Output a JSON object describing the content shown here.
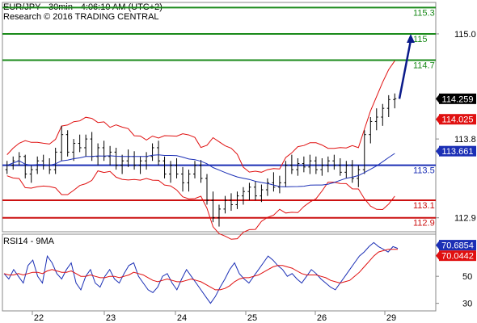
{
  "header": {
    "line1": "EUR/JPY - 30min - 4:06:10 AM (UTC+2)",
    "line2": "Research © 2016 TRADING CENTRAL"
  },
  "rsi_header": "RSI14 - 9MA",
  "colors": {
    "green": "#1a8a1a",
    "blue": "#1b2fb5",
    "red": "#cc1111",
    "price": "#000000",
    "ma_red": "#e01010",
    "ma_blue": "#1b2fb5",
    "arrow": "#0a1a8a"
  },
  "chart_data": {
    "type": "candlestick",
    "x_tick_labels": [
      "22",
      "23",
      "24",
      "25",
      "26",
      "29"
    ],
    "price_axis": {
      "range": [
        112.75,
        115.35
      ],
      "tick_labels": [
        "115.0",
        "113.8",
        "112.9"
      ],
      "tick_values": [
        115.0,
        113.8,
        112.9
      ]
    },
    "levels": [
      {
        "label": "115.3",
        "value": 115.3,
        "color": "green"
      },
      {
        "label": "115",
        "value": 115.0,
        "color": "green"
      },
      {
        "label": "114.7",
        "value": 114.7,
        "color": "green"
      },
      {
        "label": "113.5",
        "value": 113.5,
        "color": "blue"
      },
      {
        "label": "113.1",
        "value": 113.1,
        "color": "red"
      },
      {
        "label": "112.9",
        "value": 112.9,
        "color": "red"
      }
    ],
    "price_tags": [
      {
        "label": "114.259",
        "value": 114.259,
        "bg": "#000000",
        "fg": "#ffffff"
      },
      {
        "label": "114.025",
        "value": 114.025,
        "bg": "#e01010",
        "fg": "#ffffff"
      },
      {
        "label": "113.661",
        "value": 113.661,
        "bg": "#1b2fb5",
        "fg": "#ffffff"
      }
    ],
    "forecast_arrow": {
      "from": 114.259,
      "to": 115.0
    },
    "price_series": [
      [
        113.45,
        113.55,
        113.4,
        113.5
      ],
      [
        113.5,
        113.6,
        113.45,
        113.55
      ],
      [
        113.55,
        113.65,
        113.5,
        113.6
      ],
      [
        113.6,
        113.62,
        113.35,
        113.4
      ],
      [
        113.4,
        113.5,
        113.3,
        113.45
      ],
      [
        113.45,
        113.6,
        113.4,
        113.55
      ],
      [
        113.55,
        113.62,
        113.45,
        113.5
      ],
      [
        113.5,
        113.58,
        113.4,
        113.45
      ],
      [
        113.45,
        113.7,
        113.4,
        113.65
      ],
      [
        113.65,
        113.95,
        113.55,
        113.85
      ],
      [
        113.85,
        113.9,
        113.6,
        113.65
      ],
      [
        113.65,
        113.8,
        113.55,
        113.75
      ],
      [
        113.75,
        113.85,
        113.65,
        113.7
      ],
      [
        113.7,
        113.85,
        113.6,
        113.8
      ],
      [
        113.8,
        113.88,
        113.55,
        113.6
      ],
      [
        113.6,
        113.75,
        113.5,
        113.7
      ],
      [
        113.7,
        113.78,
        113.55,
        113.6
      ],
      [
        113.6,
        113.72,
        113.5,
        113.65
      ],
      [
        113.65,
        113.7,
        113.45,
        113.5
      ],
      [
        113.5,
        113.62,
        113.4,
        113.55
      ],
      [
        113.55,
        113.68,
        113.48,
        113.6
      ],
      [
        113.6,
        113.66,
        113.45,
        113.5
      ],
      [
        113.5,
        113.6,
        113.4,
        113.55
      ],
      [
        113.55,
        113.65,
        113.45,
        113.6
      ],
      [
        113.6,
        113.75,
        113.55,
        113.7
      ],
      [
        113.7,
        113.78,
        113.5,
        113.55
      ],
      [
        113.55,
        113.6,
        113.35,
        113.4
      ],
      [
        113.4,
        113.55,
        113.3,
        113.5
      ],
      [
        113.5,
        113.58,
        113.35,
        113.4
      ],
      [
        113.4,
        113.48,
        113.2,
        113.3
      ],
      [
        113.3,
        113.45,
        113.2,
        113.4
      ],
      [
        113.4,
        113.55,
        113.35,
        113.5
      ],
      [
        113.5,
        113.56,
        113.3,
        113.35
      ],
      [
        113.35,
        113.4,
        113.05,
        113.1
      ],
      [
        113.1,
        113.2,
        112.85,
        112.9
      ],
      [
        112.9,
        113.05,
        112.8,
        113.0
      ],
      [
        113.0,
        113.15,
        112.95,
        113.1
      ],
      [
        113.1,
        113.18,
        112.98,
        113.05
      ],
      [
        113.05,
        113.2,
        113.0,
        113.15
      ],
      [
        113.15,
        113.25,
        113.05,
        113.2
      ],
      [
        113.2,
        113.3,
        113.1,
        113.25
      ],
      [
        113.25,
        113.32,
        113.1,
        113.15
      ],
      [
        113.15,
        113.28,
        113.08,
        113.22
      ],
      [
        113.22,
        113.35,
        113.15,
        113.3
      ],
      [
        113.3,
        113.42,
        113.2,
        113.25
      ],
      [
        113.25,
        113.38,
        113.18,
        113.3
      ],
      [
        113.3,
        113.55,
        113.25,
        113.5
      ],
      [
        113.5,
        113.62,
        113.4,
        113.45
      ],
      [
        113.45,
        113.58,
        113.38,
        113.52
      ],
      [
        113.52,
        113.6,
        113.42,
        113.48
      ],
      [
        113.48,
        113.62,
        113.4,
        113.55
      ],
      [
        113.55,
        113.6,
        113.4,
        113.45
      ],
      [
        113.45,
        113.58,
        113.38,
        113.5
      ],
      [
        113.5,
        113.6,
        113.42,
        113.55
      ],
      [
        113.55,
        113.62,
        113.45,
        113.5
      ],
      [
        113.5,
        113.58,
        113.38,
        113.42
      ],
      [
        113.42,
        113.55,
        113.35,
        113.5
      ],
      [
        113.5,
        113.56,
        113.3,
        113.35
      ],
      [
        113.35,
        113.5,
        113.25,
        113.45
      ],
      [
        113.45,
        113.9,
        113.4,
        113.85
      ],
      [
        113.85,
        114.05,
        113.75,
        114.0
      ],
      [
        114.0,
        114.15,
        113.9,
        114.05
      ],
      [
        114.05,
        114.2,
        113.95,
        114.15
      ],
      [
        114.15,
        114.3,
        114.05,
        114.25
      ],
      [
        114.25,
        114.32,
        114.15,
        114.26
      ]
    ],
    "rsi_axis": {
      "range": [
        25,
        80
      ],
      "tick_labels": [
        "50",
        "30"
      ],
      "tick_values": [
        50,
        30
      ]
    },
    "rsi_tags": [
      {
        "label": "70.6854",
        "value": 70.6854,
        "bg": "#1b2fb5",
        "fg": "#ffffff"
      },
      {
        "label": "70.0442",
        "value": 70.0442,
        "bg": "#e01010",
        "fg": "#ffffff"
      }
    ],
    "rsi_series": [
      52,
      48,
      55,
      50,
      45,
      58,
      62,
      50,
      45,
      65,
      60,
      52,
      48,
      55,
      60,
      45,
      40,
      50,
      55,
      45,
      42,
      50,
      55,
      48,
      45,
      52,
      58,
      60,
      50,
      45,
      40,
      38,
      42,
      50,
      52,
      45,
      40,
      48,
      55,
      50,
      45,
      40,
      35,
      30,
      35,
      42,
      48,
      55,
      60,
      52,
      48,
      45,
      50,
      55,
      60,
      65,
      62,
      58,
      55,
      50,
      52,
      48,
      45,
      50,
      55,
      52,
      48,
      45,
      42,
      40,
      45,
      50,
      55,
      60,
      65,
      68,
      72,
      75,
      72,
      70,
      68,
      72,
      70.7
    ],
    "rsi_ma": [
      52,
      51,
      51,
      52,
      51,
      52,
      53,
      53,
      52,
      54,
      55,
      54,
      53,
      53,
      54,
      52,
      50,
      50,
      51,
      50,
      49,
      49,
      50,
      50,
      49,
      50,
      51,
      53,
      52,
      51,
      49,
      47,
      46,
      47,
      48,
      47,
      46,
      46,
      47,
      48,
      47,
      46,
      44,
      42,
      40,
      40,
      41,
      43,
      46,
      48,
      49,
      49,
      50,
      51,
      53,
      55,
      57,
      58,
      58,
      57,
      56,
      54,
      52,
      51,
      51,
      51,
      50,
      49,
      47,
      46,
      45,
      46,
      47,
      50,
      53,
      57,
      61,
      65,
      68,
      69,
      70,
      70,
      70.0
    ]
  }
}
